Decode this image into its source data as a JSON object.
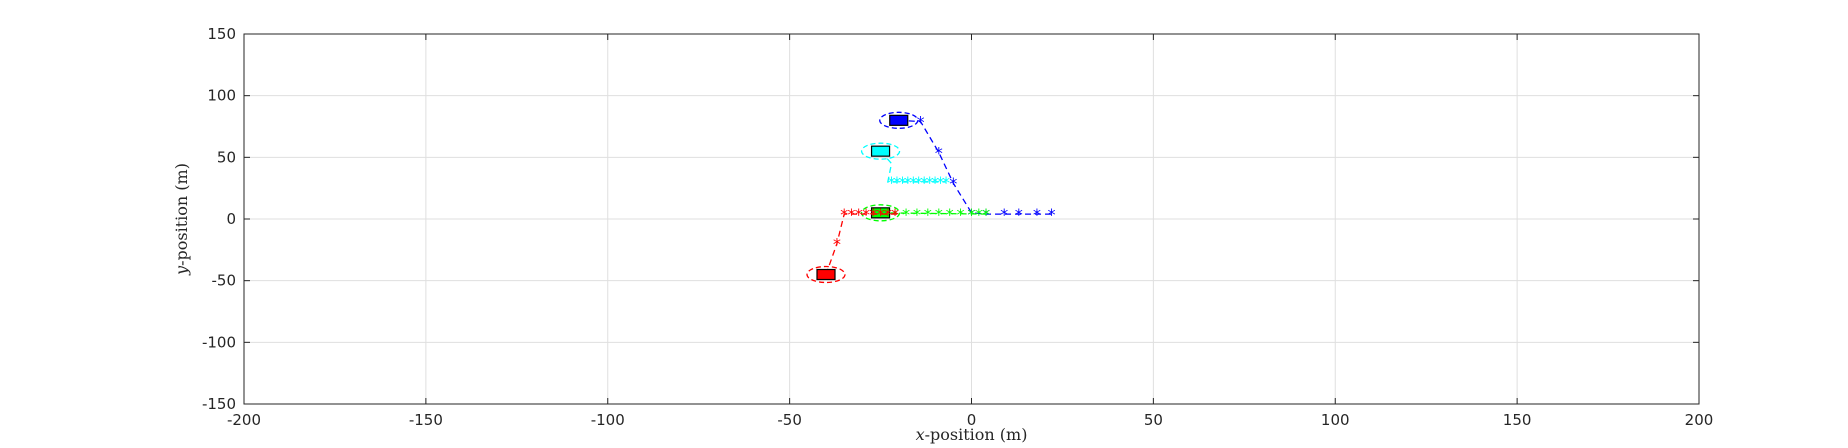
{
  "chart_data": {
    "type": "scatter",
    "xlabel_var": "x",
    "xlabel_rest": "-position (m)",
    "ylabel_var": "y",
    "ylabel_rest": "-position (m)",
    "xlim": [
      -200,
      200
    ],
    "ylim": [
      -150,
      150
    ],
    "xticks": [
      -200,
      -150,
      -100,
      -50,
      0,
      50,
      100,
      150,
      200
    ],
    "yticks": [
      -150,
      -100,
      -50,
      0,
      50,
      100,
      150
    ],
    "xtick_labels": [
      "-200",
      "-150",
      "-100",
      "-50",
      "0",
      "50",
      "100",
      "150",
      "200"
    ],
    "ytick_labels": [
      "-150",
      "-100",
      "-50",
      "0",
      "50",
      "100",
      "150"
    ],
    "grid": true,
    "legend": "none",
    "series": [
      {
        "color": "#0000ff",
        "vehicle": [
          -20,
          80
        ],
        "path": [
          [
            -20,
            80
          ],
          [
            -14,
            79
          ],
          [
            -9,
            54
          ],
          [
            -5,
            29
          ],
          [
            0,
            5
          ],
          [
            4,
            4
          ],
          [
            9,
            4
          ],
          [
            13,
            4
          ],
          [
            18,
            4
          ],
          [
            22,
            4
          ]
        ],
        "markers": [
          [
            -14,
            79
          ],
          [
            -9,
            54
          ],
          [
            -5,
            29
          ],
          [
            0,
            4
          ],
          [
            4,
            4
          ],
          [
            9,
            4
          ],
          [
            13,
            4
          ],
          [
            18,
            4
          ],
          [
            22,
            4
          ]
        ]
      },
      {
        "color": "#00ffff",
        "vehicle": [
          -25,
          55
        ],
        "path": [
          [
            -25,
            55
          ],
          [
            -22,
            45
          ],
          [
            -23,
            30
          ],
          [
            -7,
            30
          ]
        ],
        "markers": [
          [
            -22,
            30
          ],
          [
            -20.5,
            30
          ],
          [
            -19,
            30
          ],
          [
            -17.5,
            30
          ],
          [
            -16,
            30
          ],
          [
            -14.5,
            30
          ],
          [
            -13,
            30
          ],
          [
            -11.5,
            30
          ],
          [
            -10,
            30
          ],
          [
            -8.5,
            30
          ],
          [
            -7,
            30
          ]
        ]
      },
      {
        "color": "#00ff00",
        "vehicle": [
          -25,
          5
        ],
        "path": [
          [
            -25,
            5
          ],
          [
            4,
            4
          ]
        ],
        "markers": [
          [
            -21,
            4
          ],
          [
            -18,
            4
          ],
          [
            -15,
            4
          ],
          [
            -12,
            4
          ],
          [
            -9,
            4
          ],
          [
            -6,
            4
          ],
          [
            -3,
            4
          ],
          [
            0,
            4
          ],
          [
            2,
            4
          ],
          [
            4,
            4
          ]
        ]
      },
      {
        "color": "#ff0000",
        "vehicle": [
          -40,
          -45
        ],
        "path": [
          [
            -40,
            -45
          ],
          [
            -37,
            -20
          ],
          [
            -35,
            4
          ],
          [
            -20,
            4
          ]
        ],
        "markers": [
          [
            -37,
            -20
          ],
          [
            -35,
            4
          ],
          [
            -33,
            4
          ],
          [
            -31,
            4
          ],
          [
            -29,
            4
          ],
          [
            -27,
            4
          ],
          [
            -25,
            4
          ],
          [
            -23,
            4
          ],
          [
            -21,
            4
          ]
        ]
      }
    ]
  }
}
